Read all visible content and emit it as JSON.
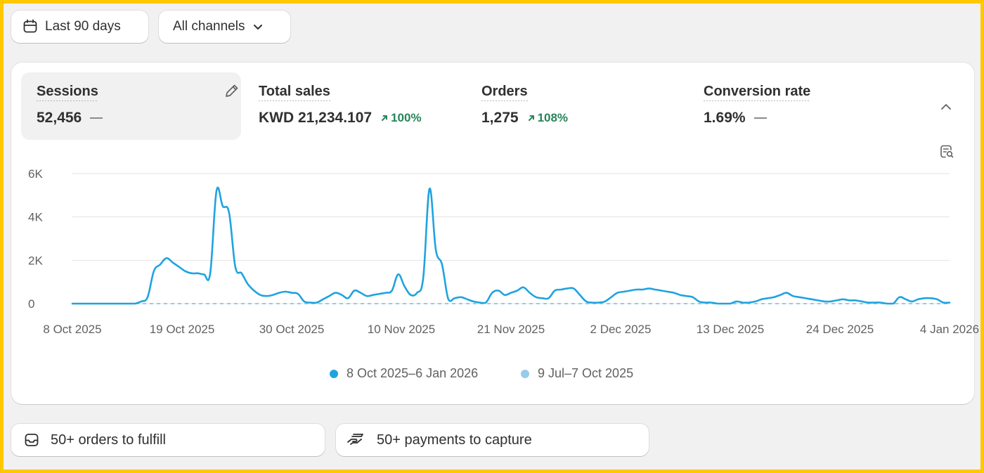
{
  "filters": {
    "date_range_label": "Last 90 days",
    "channel_label": "All channels"
  },
  "metrics": [
    {
      "label": "Sessions",
      "value": "52,456",
      "change": null,
      "active": true
    },
    {
      "label": "Total sales",
      "value": "KWD 21,234.107",
      "change": "100%",
      "active": false
    },
    {
      "label": "Orders",
      "value": "1,275",
      "change": "108%",
      "active": false
    },
    {
      "label": "Conversion rate",
      "value": "1.69%",
      "change": null,
      "active": false
    }
  ],
  "colors": {
    "current_series": "#1fa3e0",
    "previous_series": "#96cbe9",
    "positive_change": "#29845a",
    "accent_border": "#ffc800"
  },
  "chart_data": {
    "type": "line",
    "y_ticks": [
      "6K",
      "4K",
      "2K",
      "0"
    ],
    "ylim": [
      0,
      6000
    ],
    "x_tick_labels": [
      "8 Oct 2025",
      "19 Oct 2025",
      "30 Oct 2025",
      "10 Nov 2025",
      "21 Nov 2025",
      "2 Dec 2025",
      "13 Dec 2025",
      "24 Dec 2025",
      "4 Jan 2026"
    ],
    "grid": true,
    "legend_position": "bottom",
    "series": [
      {
        "name": "8 Oct 2025–6 Jan 2026",
        "values": [
          0,
          0,
          0,
          0,
          0,
          0,
          0,
          0,
          0,
          0,
          0,
          100,
          300,
          1500,
          1800,
          2100,
          1900,
          1700,
          1500,
          1400,
          1400,
          1350,
          1400,
          5200,
          4500,
          4200,
          1700,
          1400,
          900,
          600,
          400,
          350,
          400,
          500,
          550,
          500,
          450,
          100,
          50,
          50,
          200,
          350,
          500,
          400,
          250,
          600,
          500,
          350,
          400,
          450,
          500,
          600,
          1350,
          800,
          400,
          500,
          1200,
          5300,
          2500,
          1800,
          200,
          250,
          300,
          200,
          100,
          50,
          50,
          500,
          600,
          400,
          500,
          600,
          750,
          500,
          300,
          250,
          250,
          600,
          650,
          700,
          700,
          400,
          100,
          50,
          50,
          100,
          300,
          500,
          550,
          600,
          650,
          650,
          700,
          650,
          600,
          550,
          500,
          400,
          350,
          300,
          100,
          50,
          50,
          0,
          0,
          0,
          100,
          50,
          50,
          100,
          200,
          250,
          300,
          400,
          500,
          350,
          300,
          250,
          200,
          150,
          100,
          100,
          150,
          200,
          150,
          150,
          100,
          50,
          50,
          50,
          0,
          0,
          300,
          200,
          100,
          200,
          250,
          250,
          200,
          50,
          50
        ]
      },
      {
        "name": "9 Jul–7 Oct 2025",
        "values": [
          0,
          0,
          0,
          0,
          0,
          0,
          0,
          0,
          0,
          0
        ]
      }
    ]
  },
  "tasks": [
    {
      "label": "50+ orders to fulfill",
      "icon": "inbox-icon"
    },
    {
      "label": "50+ payments to capture",
      "icon": "hand-coins-icon"
    }
  ]
}
